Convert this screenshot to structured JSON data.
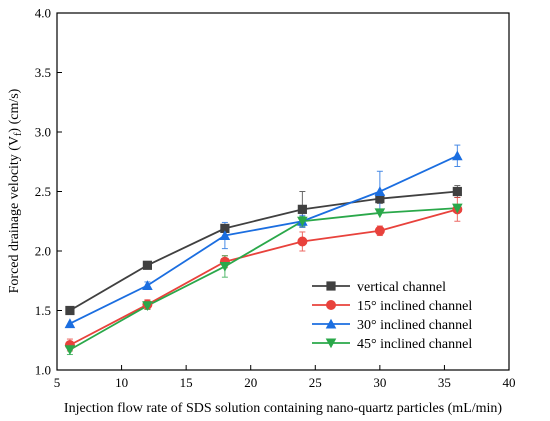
{
  "chart_data": {
    "type": "line",
    "xlabel": "Injection flow rate of SDS solution containing nano-quartz particles (mL/min)",
    "ylabel": "Forced drainage velocity (V",
    "ylabel_sub": "f",
    "ylabel_tail": ") (cm/s)",
    "xlim": [
      5,
      40
    ],
    "ylim": [
      1.0,
      4.0
    ],
    "xticks": [
      5,
      10,
      15,
      20,
      25,
      30,
      35,
      40
    ],
    "xtick_labels": [
      "5",
      "10",
      "15",
      "20",
      "25",
      "30",
      "35",
      "40"
    ],
    "yticks": [
      1.0,
      1.5,
      2.0,
      2.5,
      3.0,
      3.5,
      4.0
    ],
    "ytick_labels": [
      "1.0",
      "1.5",
      "2.0",
      "2.5",
      "3.0",
      "3.5",
      "4.0"
    ],
    "grid": false,
    "legend_position": "bottom-right",
    "x": [
      6,
      12,
      18,
      24,
      30,
      36
    ],
    "series": [
      {
        "name": "vertical channel",
        "color": "#404040",
        "marker": "square",
        "values": [
          1.5,
          1.88,
          2.19,
          2.35,
          2.44,
          2.5
        ],
        "errors": [
          0.0,
          0.0,
          0.03,
          0.15,
          0.04,
          0.05
        ]
      },
      {
        "name": "15° inclined channel",
        "color": "#e8423c",
        "marker": "circle",
        "values": [
          1.21,
          1.55,
          1.91,
          2.08,
          2.17,
          2.35
        ],
        "errors": [
          0.05,
          0.04,
          0.05,
          0.08,
          0.04,
          0.1
        ]
      },
      {
        "name": "30° inclined channel",
        "color": "#1b6ee0",
        "marker": "triangle-up",
        "values": [
          1.39,
          1.71,
          2.13,
          2.25,
          2.5,
          2.8
        ],
        "errors": [
          0.0,
          0.03,
          0.11,
          0.05,
          0.17,
          0.09
        ]
      },
      {
        "name": "45° inclined channel",
        "color": "#2aa84a",
        "marker": "triangle-down",
        "values": [
          1.17,
          1.54,
          1.87,
          2.25,
          2.32,
          2.36
        ],
        "errors": [
          0.04,
          0.03,
          0.09,
          0.04,
          0.0,
          0.0
        ]
      }
    ]
  }
}
